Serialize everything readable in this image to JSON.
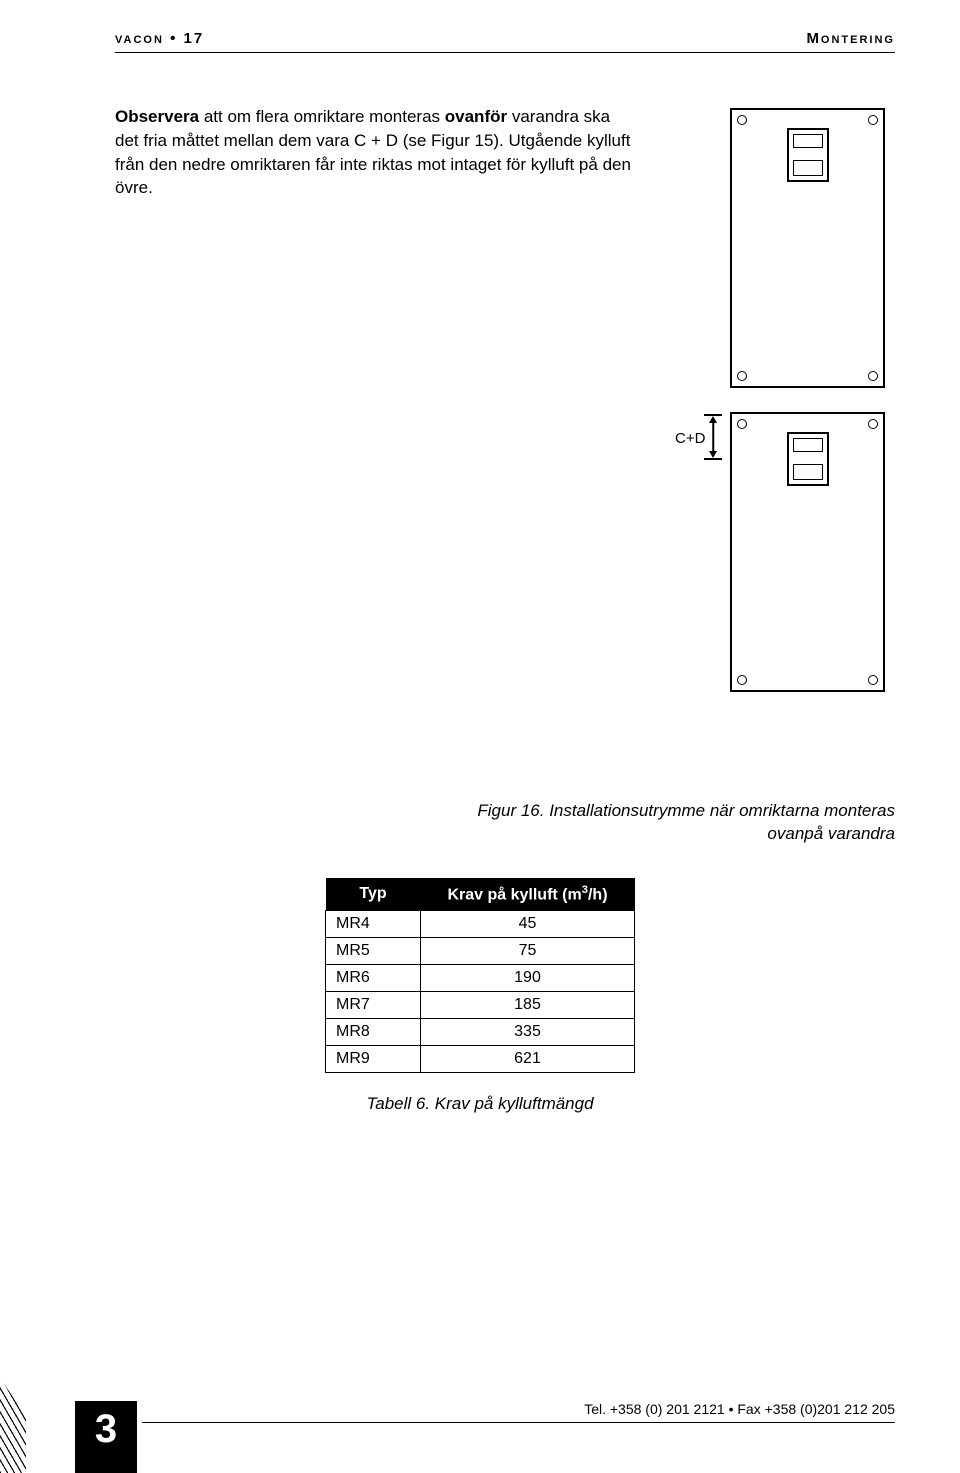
{
  "header": {
    "left": "vacon • 17",
    "right": "Montering"
  },
  "paragraph": {
    "t1": "Observera",
    "t2": " att om flera omriktare monteras ",
    "t3": "ovanför",
    "t4": " varandra ska det fria måttet mellan dem vara C + D (se Figur 15). Utgående kylluft från den nedre omriktaren får inte riktas mot intaget för kylluft på den övre."
  },
  "diagram": {
    "gap_label": "C+D"
  },
  "figure_caption": "Figur 16. Installationsutrymme när omriktarna monteras ovanpå varandra",
  "table": {
    "col1": "Typ",
    "col2_prefix": "Krav på kylluft (m",
    "col2_sup": "3",
    "col2_suffix": "/h)",
    "rows": [
      {
        "type": "MR4",
        "val": "45"
      },
      {
        "type": "MR5",
        "val": "75"
      },
      {
        "type": "MR6",
        "val": "190"
      },
      {
        "type": "MR7",
        "val": "185"
      },
      {
        "type": "MR8",
        "val": "335"
      },
      {
        "type": "MR9",
        "val": "621"
      }
    ],
    "caption": "Tabell 6. Krav på kylluftmängd"
  },
  "footer": {
    "chapter": "3",
    "contact": "Tel. +358 (0) 201 2121 • Fax +358 (0)201 212 205"
  }
}
